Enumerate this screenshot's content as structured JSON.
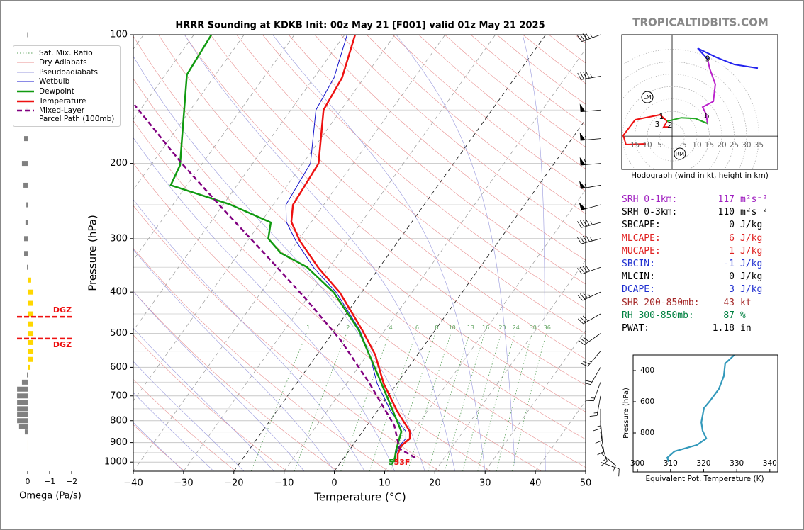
{
  "site": "TROPICALTIDBITS.COM",
  "chart_data": [
    {
      "type": "skewt",
      "title": "HRRR Sounding at KDKB Init: 00z May 21 [F001] valid 01z May 21 2025",
      "x_label": "Temperature (°C)",
      "y_label": "Pressure (hPa)",
      "xlim": [
        -40,
        50
      ],
      "xticks": [
        {
          "value": -40,
          "label": "−40"
        },
        {
          "value": -30,
          "label": "−30"
        },
        {
          "value": -20,
          "label": "−20"
        },
        {
          "value": -10,
          "label": "−10"
        },
        0,
        10,
        20,
        30,
        40,
        50
      ],
      "ylim": [
        1050,
        100
      ],
      "log_y": true,
      "grid": true,
      "yticks": [
        100,
        200,
        300,
        400,
        500,
        600,
        700,
        800,
        900,
        1000
      ],
      "minor_yticks": [
        150,
        250,
        350,
        450,
        550,
        650,
        750,
        850,
        950
      ],
      "legend_lines": [
        {
          "name": "Sat. Mix. Ratio",
          "color": "#5aa05a",
          "linestyle": "dotted"
        },
        {
          "name": "Dry Adiabats",
          "color": "#e89090",
          "linestyle": "solid"
        },
        {
          "name": "Pseudoadiabats",
          "color": "#9999dd",
          "linestyle": "solid"
        }
      ],
      "series": [
        {
          "name": "Wetbulb",
          "color": "#1515cc",
          "linewidth": 1,
          "linestyle": "solid",
          "pressure": [
            999,
            958,
            915,
            881,
            848,
            762,
            654,
            561,
            491,
            401,
            351,
            303,
            274,
            250,
            200,
            150,
            126,
            100
          ],
          "values": [
            10.8,
            9.8,
            9.4,
            9.6,
            8.6,
            2.8,
            -4.0,
            -9.5,
            -15.0,
            -25.0,
            -33.0,
            -40.5,
            -45,
            -47.5,
            -48.5,
            -55.0,
            -56.0,
            -59.5
          ]
        },
        {
          "name": "Dewpoint",
          "color": "#109a10",
          "linewidth": 2.5,
          "linestyle": "solid",
          "pressure": [
            999,
            938,
            848,
            720,
            595,
            491,
            401,
            350,
            324,
            300,
            275,
            249,
            225,
            202,
            172,
            124,
            100
          ],
          "values": [
            10.6,
            9.3,
            7.7,
            0.9,
            -7.1,
            -15.2,
            -25.5,
            -34.4,
            -41.7,
            -46.2,
            -48,
            -58.9,
            -73.2,
            -74.2,
            -78,
            -85.7,
            -86.5
          ]
        },
        {
          "name": "Temperature",
          "color": "#ee1111",
          "linewidth": 2.5,
          "linestyle": "solid",
          "pressure": [
            999,
            958,
            915,
            881,
            848,
            762,
            654,
            561,
            491,
            401,
            351,
            303,
            274,
            250,
            200,
            150,
            126,
            100
          ],
          "values": [
            11.3,
            10.2,
            9.7,
            10.4,
            9.4,
            4.1,
            -2.7,
            -8.4,
            -14.5,
            -24.3,
            -32.1,
            -39.7,
            -44,
            -46.1,
            -46.9,
            -53.5,
            -54.4,
            -57.9
          ]
        },
        {
          "name": "Mixed-Layer\nParcel Path (100mb)",
          "color": "#800080",
          "linewidth": 2.5,
          "linestyle": "dashed",
          "pressure": [
            977,
            929,
            822,
            654,
            520,
            414,
            329,
            252,
            200,
            146
          ],
          "values": [
            14.2,
            9.7,
            5.5,
            -5.5,
            -17.2,
            -30.3,
            -44.1,
            -60.3,
            -74.1,
            -91.8
          ]
        }
      ],
      "mixing_ratio_labels": [
        1,
        2,
        4,
        6,
        8,
        10,
        13,
        16,
        20,
        24,
        30,
        36
      ],
      "surface_labels": [
        {
          "text": "5",
          "color": "#109a10"
        },
        {
          "text": "53F",
          "color": "#ee1111"
        }
      ],
      "wind": {
        "pressure": [
          100,
          125,
          150,
          175,
          200,
          225,
          250,
          275,
          300,
          350,
          400,
          450,
          500,
          550,
          600,
          650,
          700,
          750,
          800,
          850,
          900,
          950,
          1000
        ],
        "speed": [
          45,
          45,
          50,
          55,
          60,
          55,
          50,
          45,
          45,
          40,
          35,
          30,
          30,
          25,
          20,
          15,
          15,
          15,
          10,
          10,
          15,
          15,
          10
        ],
        "direction": [
          250,
          260,
          265,
          265,
          265,
          260,
          255,
          255,
          255,
          250,
          245,
          240,
          235,
          220,
          210,
          200,
          190,
          180,
          175,
          170,
          160,
          130,
          110
        ]
      }
    },
    {
      "type": "hodograph",
      "title": "Hodograph (wind in kt, height in km)",
      "xlim": [
        -20.3,
        42.6
      ],
      "ylim": [
        -13.4,
        40.9
      ],
      "xticks": [
        {
          "value": -15,
          "label": "15"
        },
        {
          "value": -10,
          "label": "10"
        },
        {
          "value": -5,
          "label": "5"
        },
        5,
        10,
        15,
        20,
        25,
        30,
        35
      ],
      "series": [
        {
          "color": "#ee1111",
          "u": [
            -10.6,
            -18.6,
            -19.7,
            -14.9,
            -4.9,
            -2,
            -3.4,
            -1.1
          ],
          "v": [
            -3.1,
            -3.4,
            0.3,
            6.6,
            8.6,
            6,
            3.7,
            3.7
          ]
        },
        {
          "color": "#22aa22",
          "u": [
            -2,
            3.7,
            9.4,
            14.3
          ],
          "v": [
            6,
            7.4,
            7.1,
            5.1
          ]
        },
        {
          "color": "#bb22cc",
          "u": [
            14.3,
            13.7,
            12.3,
            16.6,
            17.4,
            15.1,
            14.3
          ],
          "v": [
            5.1,
            8.9,
            11.7,
            14,
            20.9,
            27.4,
            31.1
          ]
        },
        {
          "color": "#2222ee",
          "u": [
            14.3,
            10.3,
            18,
            25.1,
            34.6
          ],
          "v": [
            31.1,
            35.4,
            31.7,
            28.9,
            27.4
          ]
        }
      ],
      "height_labels": [
        {
          "label": "1",
          "u": -4.3,
          "v": 7.7
        },
        {
          "label": "2",
          "u": -0.9,
          "v": 4.3
        },
        {
          "label": "3",
          "u": -6,
          "v": 4.6
        },
        {
          "label": "6",
          "u": 14,
          "v": 8
        },
        {
          "label": "9",
          "u": 14.3,
          "v": 31.1
        }
      ],
      "storm_motion": [
        {
          "label": "LM",
          "u": -10,
          "v": 15.7
        },
        {
          "label": "RM",
          "u": 3.1,
          "v": -7.1
        }
      ]
    },
    {
      "type": "profile",
      "x_label": "Equivalent Pot. Temperature (K)",
      "y_label": "Pressure (hPa)",
      "xlim": [
        298.7,
        342.4
      ],
      "ylim": [
        1050,
        300
      ],
      "xticks": [
        300,
        310,
        320,
        330,
        340
      ],
      "yticks": [
        400,
        600,
        800
      ],
      "series": [
        {
          "color": "#3399bb",
          "pressure": [
            300,
            355,
            436,
            518,
            595,
            641,
            732,
            786,
            836,
            877,
            918,
            959,
            986
          ],
          "values": [
            329.3,
            326.5,
            326.1,
            324.6,
            321.9,
            320.1,
            319.3,
            319.7,
            320.8,
            318,
            311.2,
            309,
            309.5
          ]
        }
      ]
    },
    {
      "type": "omega",
      "x_label": "Omega (Pa/s)",
      "xlim": [
        0.58,
        -2
      ],
      "ylim": [
        1050,
        100
      ],
      "xticks": [
        0,
        {
          "value": -1,
          "label": "−1"
        },
        {
          "value": -2,
          "label": "−2"
        }
      ],
      "colors": {
        "positive": "#808080",
        "negative": "#ffd700"
      },
      "pressure": [
        100,
        150,
        175,
        200,
        225,
        250,
        275,
        300,
        325,
        350,
        375,
        400,
        425,
        450,
        475,
        500,
        525,
        550,
        575,
        600,
        625,
        650,
        675,
        700,
        725,
        750,
        775,
        800,
        825,
        850,
        900,
        925
      ],
      "values": [
        0.02,
        0.1,
        0.16,
        0.26,
        0.19,
        0.06,
        0.1,
        0.16,
        0.16,
        0.03,
        -0.16,
        -0.26,
        -0.23,
        -0.26,
        -0.23,
        -0.26,
        -0.26,
        -0.26,
        -0.23,
        -0.13,
        0.03,
        0.26,
        0.48,
        0.48,
        0.48,
        0.48,
        0.48,
        0.48,
        0.39,
        0.13,
        -0.03,
        -0.03
      ],
      "dgz": [
        {
          "pressure": 457,
          "label": "DGZ",
          "color": "#ee1111"
        },
        {
          "pressure": 514,
          "label": "DGZ",
          "color": "#ee1111"
        }
      ]
    }
  ],
  "indices": {
    "rows": [
      {
        "label": "SRH 0-1km:",
        "value": 117,
        "unit": "m²s⁻²",
        "color": "#a020c0"
      },
      {
        "label": "SRH 0-3km:",
        "value": 110,
        "unit": "m²s⁻²",
        "color": "#000000"
      },
      {
        "label": "SBCAPE:",
        "value": 0,
        "unit": "J/kg",
        "color": "#000000"
      },
      {
        "label": "MLCAPE:",
        "value": 6,
        "unit": "J/kg",
        "color": "#e02020"
      },
      {
        "label": "MUCAPE:",
        "value": 1,
        "unit": "J/kg",
        "color": "#e02020"
      },
      {
        "label": "SBCIN:",
        "value": -1,
        "unit": "J/kg",
        "color": "#2030d0"
      },
      {
        "label": "MLCIN:",
        "value": 0,
        "unit": "J/kg",
        "color": "#000000"
      },
      {
        "label": "DCAPE:",
        "value": 3,
        "unit": "J/kg",
        "color": "#2030d0"
      },
      {
        "label": "SHR 200-850mb:",
        "value": 43,
        "unit": "kt",
        "color": "#a52a2a"
      },
      {
        "label": "RH 300-850mb:",
        "value": 87,
        "unit": "%",
        "color": "#008040"
      },
      {
        "label": "PWAT:",
        "value": 1.18,
        "unit": "in",
        "color": "#000000"
      }
    ]
  }
}
